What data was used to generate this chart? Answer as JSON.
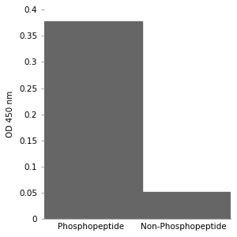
{
  "categories": [
    "Phosphopeptide",
    "Non-Phosphopeptide"
  ],
  "values": [
    0.378,
    0.051
  ],
  "bar_color": "#666666",
  "ylabel": "OD 450 nm",
  "ylim": [
    0,
    0.4
  ],
  "yticks": [
    0,
    0.05,
    0.1,
    0.15,
    0.2,
    0.25,
    0.3,
    0.35,
    0.4
  ],
  "ytick_labels": [
    "0",
    "0.05",
    "0.1",
    "0.15",
    "0.2",
    "0.25",
    "0.3",
    "0.35",
    "0.4"
  ],
  "background_color": "#ffffff",
  "bar_width": 0.55,
  "bar_positions": [
    0.25,
    0.75
  ],
  "xlim": [
    0,
    1
  ],
  "xlabel_fontsize": 7.5,
  "ylabel_fontsize": 7.5,
  "tick_fontsize": 7.5,
  "spine_color": "#aaaaaa"
}
